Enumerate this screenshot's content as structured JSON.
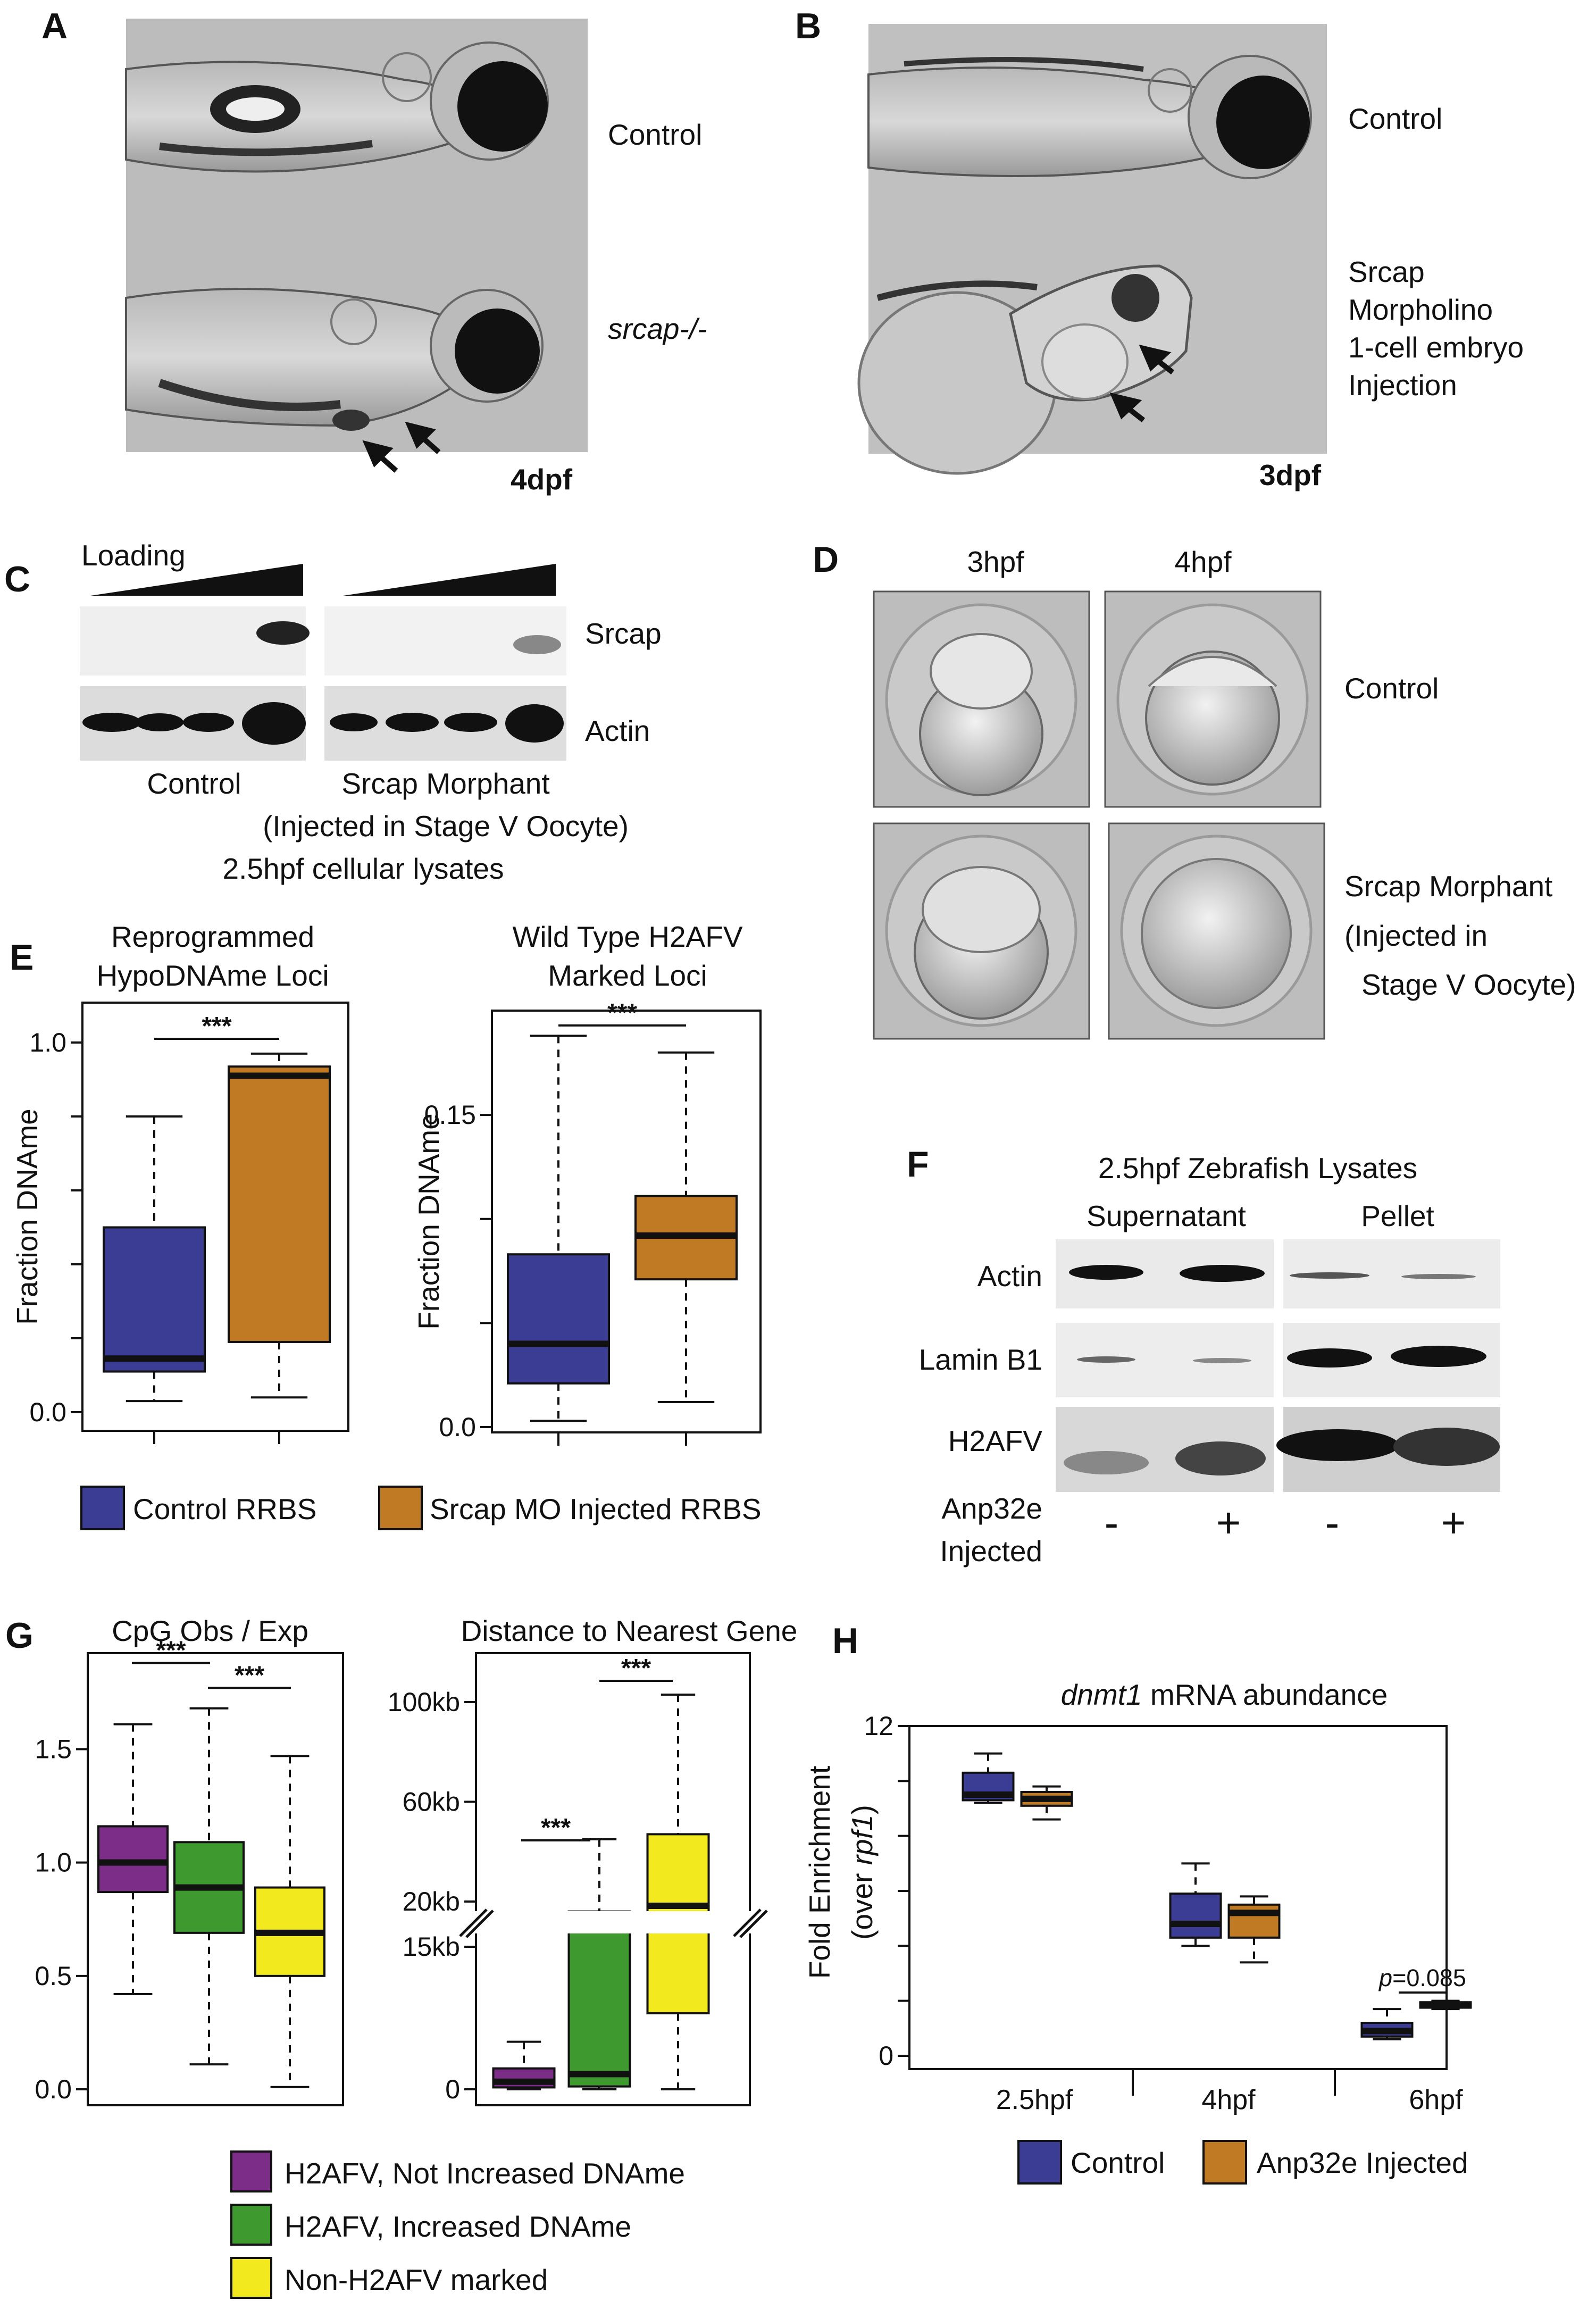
{
  "panels": {
    "a": {
      "label": "A",
      "control": "Control",
      "mutant": "srcap-/-",
      "stage": "4dpf"
    },
    "b": {
      "label": "B",
      "control": "Control",
      "morphant_lines": [
        "Srcap",
        "Morpholino",
        "1-cell embryo",
        "Injection"
      ],
      "stage": "3dpf"
    },
    "c": {
      "label": "C",
      "loading": "Loading",
      "srcap": "Srcap",
      "actin": "Actin",
      "control": "Control",
      "morphant": "Srcap Morphant",
      "injection": "(Injected in Stage V Oocyte)",
      "lysates": "2.5hpf cellular lysates"
    },
    "d": {
      "label": "D",
      "col1": "3hpf",
      "col2": "4hpf",
      "control": "Control",
      "morphant_lines": [
        "Srcap Morphant",
        "(Injected in",
        "Stage V Oocyte)"
      ]
    },
    "e": {
      "label": "E"
    },
    "f": {
      "label": "F",
      "title": "2.5hpf Zebrafish Lysates",
      "supernatant": "Supernatant",
      "pellet": "Pellet",
      "rows": [
        "Actin",
        "Lamin B1",
        "H2AFV"
      ],
      "injected_lines": [
        "Anp32e",
        "Injected"
      ],
      "states": [
        "-",
        "+",
        "-",
        "+"
      ]
    },
    "g": {
      "label": "G"
    },
    "h": {
      "label": "H"
    }
  },
  "legends": {
    "e": [
      "Control RRBS",
      "Srcap MO Injected RRBS"
    ],
    "g": [
      "H2AFV, Not Increased DNAme",
      "H2AFV, Increased DNAme",
      "Non-H2AFV marked"
    ],
    "h": [
      "Control",
      "Anp32e Injected"
    ]
  },
  "colors": {
    "control": "#3b3d95",
    "treated": "#c17a24",
    "purple": "#7b2d88",
    "green": "#3e9a2e",
    "yellow": "#f2ea1e"
  },
  "chart_data": [
    {
      "type": "box",
      "title_lines": [
        "Reprogrammed",
        "HypoDNAme Loci"
      ],
      "ylabel": "Fraction DNAme",
      "ylim": [
        0,
        1.0
      ],
      "yticks": [
        "0.0",
        "",
        "",
        "",
        "",
        "1.0"
      ],
      "ytick_values": [
        0,
        0.2,
        0.4,
        0.6,
        0.8,
        1.0
      ],
      "boxes": [
        {
          "color": "#3b3d95",
          "min": 0.03,
          "q1": 0.11,
          "median": 0.145,
          "q3": 0.5,
          "max": 0.8
        },
        {
          "color": "#c17a24",
          "min": 0.04,
          "q1": 0.19,
          "median": 0.91,
          "q3": 0.935,
          "max": 0.97
        }
      ],
      "sig": [
        {
          "from": 0,
          "to": 1,
          "label": "***",
          "y": 1.01
        }
      ]
    },
    {
      "type": "box",
      "title_lines": [
        "Wild Type H2AFV",
        "Marked Loci"
      ],
      "ylabel": "Fraction DNAme",
      "ylim": [
        0,
        0.195
      ],
      "yticks": [
        "0.0",
        "",
        "",
        "0.15"
      ],
      "ytick_values": [
        0,
        0.05,
        0.1,
        0.15
      ],
      "boxes": [
        {
          "color": "#3b3d95",
          "min": 0.003,
          "q1": 0.021,
          "median": 0.04,
          "q3": 0.083,
          "max": 0.188
        },
        {
          "color": "#c17a24",
          "min": 0.012,
          "q1": 0.071,
          "median": 0.092,
          "q3": 0.111,
          "max": 0.18
        }
      ],
      "sig": [
        {
          "from": 0,
          "to": 1,
          "label": "***",
          "y": 0.193
        }
      ]
    },
    {
      "type": "box",
      "title": "CpG Obs / Exp",
      "ylim": [
        0,
        1.9
      ],
      "yticks": [
        "0.0",
        "0.5",
        "1.0",
        "1.5"
      ],
      "ytick_values": [
        0,
        0.5,
        1.0,
        1.5
      ],
      "boxes": [
        {
          "color": "#7b2d88",
          "min": 0.42,
          "q1": 0.87,
          "median": 1.0,
          "q3": 1.16,
          "max": 1.61
        },
        {
          "color": "#3e9a2e",
          "min": 0.11,
          "q1": 0.69,
          "median": 0.89,
          "q3": 1.09,
          "max": 1.68
        },
        {
          "color": "#f2ea1e",
          "min": 0.01,
          "q1": 0.5,
          "median": 0.69,
          "q3": 0.89,
          "max": 1.47
        }
      ],
      "sig": [
        {
          "from": 0,
          "to": 1,
          "label": "***",
          "y": 1.88
        },
        {
          "from": 1,
          "to": 2,
          "label": "***",
          "y": 1.77
        }
      ]
    },
    {
      "type": "box",
      "title": "Distance to Nearest Gene",
      "yticks": [
        "0",
        "15kb",
        "20kb",
        "60kb",
        "100kb"
      ],
      "ytick_values": [
        0,
        15,
        20,
        60,
        100
      ],
      "axis_break": [
        15,
        20
      ],
      "boxes": [
        {
          "color": "#7b2d88",
          "min": 0,
          "q1": 0.2,
          "median": 0.8,
          "q3": 2.2,
          "max": 5.0
        },
        {
          "color": "#3e9a2e",
          "min": 0,
          "q1": 0.3,
          "median": 1.6,
          "q3": 16.0,
          "max": 45.0
        },
        {
          "color": "#f2ea1e",
          "min": 0,
          "q1": 8.0,
          "median": 18.3,
          "q3": 47.0,
          "max": 103.0
        }
      ],
      "sig": [
        {
          "from": 0,
          "to": 1,
          "label": "***",
          "y": 12.0
        },
        {
          "from": 1,
          "to": 2,
          "label": "***",
          "y": 110.0
        }
      ]
    },
    {
      "type": "box",
      "title_gene": "dnmt1",
      "title_rest": " mRNA abundance",
      "ylabel_lines": [
        "Fold Enrichment",
        "(over ",
        "rpf1",
        ")"
      ],
      "ylim": [
        0,
        12
      ],
      "yticks": [
        "0",
        "",
        "",
        "",
        "",
        "",
        "12"
      ],
      "ytick_values": [
        0,
        2,
        4,
        6,
        8,
        10,
        12
      ],
      "categories": [
        "2.5hpf",
        "4hpf",
        "6hpf"
      ],
      "boxes": [
        {
          "group": 0,
          "color": "#3b3d95",
          "min": 9.2,
          "q1": 9.3,
          "median": 9.5,
          "q3": 10.3,
          "max": 11.0
        },
        {
          "group": 0,
          "color": "#c17a24",
          "min": 8.6,
          "q1": 9.1,
          "median": 9.35,
          "q3": 9.6,
          "max": 9.8
        },
        {
          "group": 1,
          "color": "#3b3d95",
          "min": 4.0,
          "q1": 4.3,
          "median": 4.8,
          "q3": 5.9,
          "max": 7.0
        },
        {
          "group": 1,
          "color": "#c17a24",
          "min": 3.4,
          "q1": 4.3,
          "median": 5.2,
          "q3": 5.5,
          "max": 5.8
        },
        {
          "group": 2,
          "color": "#3b3d95",
          "min": 0.6,
          "q1": 0.7,
          "median": 0.9,
          "q3": 1.2,
          "max": 1.7
        },
        {
          "group": 2,
          "color": "#c17a24",
          "min": 1.7,
          "q1": 1.75,
          "median": 1.85,
          "q3": 1.95,
          "max": 2.0
        }
      ],
      "annotation": {
        "label_italic": "p",
        "label_rest": "=0.085",
        "group": 2,
        "y": 2.3
      }
    }
  ]
}
